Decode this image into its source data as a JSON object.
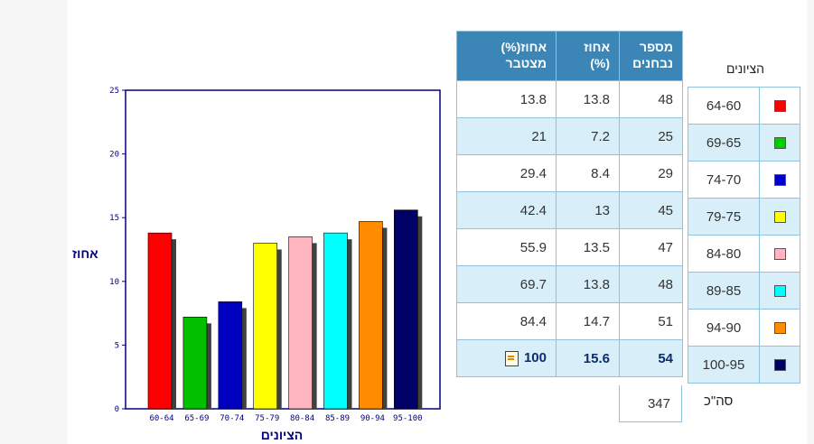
{
  "table": {
    "headers": {
      "cumulative": "אחוז(%) מצטבר",
      "percent": "אחוז (%)",
      "count": "מספר נבחנים"
    },
    "rows": [
      {
        "cumulative": "13.8",
        "percent": "13.8",
        "count": "48"
      },
      {
        "cumulative": "21",
        "percent": "7.2",
        "count": "25"
      },
      {
        "cumulative": "29.4",
        "percent": "8.4",
        "count": "29"
      },
      {
        "cumulative": "42.4",
        "percent": "13",
        "count": "45"
      },
      {
        "cumulative": "55.9",
        "percent": "13.5",
        "count": "47"
      },
      {
        "cumulative": "69.7",
        "percent": "13.8",
        "count": "48"
      },
      {
        "cumulative": "84.4",
        "percent": "14.7",
        "count": "51"
      },
      {
        "cumulative": "100",
        "percent": "15.6",
        "count": "54"
      }
    ],
    "total_count": "347",
    "total_label": "סה\"כ"
  },
  "legend": {
    "title": "הציונים",
    "items": [
      {
        "label": "64-60",
        "color": "#ff0000"
      },
      {
        "label": "69-65",
        "color": "#00cc00"
      },
      {
        "label": "74-70",
        "color": "#0000cc"
      },
      {
        "label": "79-75",
        "color": "#ffff00"
      },
      {
        "label": "84-80",
        "color": "#ffb6c1"
      },
      {
        "label": "89-85",
        "color": "#00ffff"
      },
      {
        "label": "94-90",
        "color": "#ff8c00"
      },
      {
        "label": "100-95",
        "color": "#000066"
      }
    ]
  },
  "chart_data": {
    "type": "bar",
    "categories": [
      "60-64",
      "65-69",
      "70-74",
      "75-79",
      "80-84",
      "85-89",
      "90-94",
      "95-100"
    ],
    "values": [
      13.8,
      7.2,
      8.4,
      13,
      13.5,
      13.8,
      14.7,
      15.6
    ],
    "colors": [
      "#ff0000",
      "#00c000",
      "#0000c0",
      "#ffff00",
      "#ffb6c1",
      "#00ffff",
      "#ff8c00",
      "#000066"
    ],
    "title": "",
    "xlabel": "הציונים",
    "ylabel": "אחוז",
    "ylim": [
      0,
      25
    ],
    "yticks": [
      0,
      5,
      10,
      15,
      20,
      25
    ],
    "grid": false
  }
}
